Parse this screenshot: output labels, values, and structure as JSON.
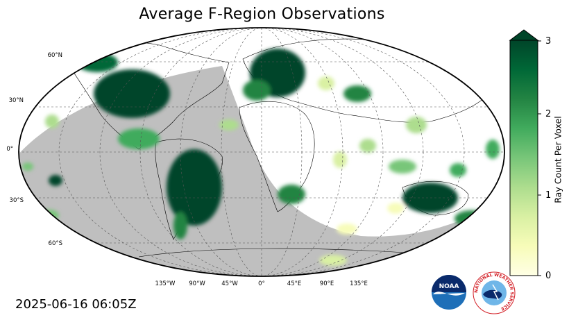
{
  "title": "Average F-Region Observations",
  "timestamp": "2025-06-16 06:05Z",
  "latitude_labels": [
    "60°N",
    "30°N",
    "0°",
    "30°S",
    "60°S"
  ],
  "longitude_labels": [
    "135°W",
    "90°W",
    "45°W",
    "0°",
    "45°E",
    "90°E",
    "135°E"
  ],
  "colorbar": {
    "label": "Ray Count Per Voxel",
    "ticks": [
      "0",
      "1",
      "2",
      "3"
    ],
    "min": 0,
    "max": 3,
    "extend": "max",
    "colormap": "YlGn",
    "colors": [
      "#ffffe5",
      "#f7fcb9",
      "#d9f0a3",
      "#addd8e",
      "#78c679",
      "#41ab5d",
      "#238443",
      "#006837",
      "#004529"
    ]
  },
  "colors": {
    "night_shading": "#bfbfbf",
    "map_border": "#000000",
    "gridline": "#555555",
    "dense_observations": "#004a20"
  },
  "logos": {
    "noaa_text": "NOAA",
    "nws_text": "NATIONAL WEATHER SERVICE"
  }
}
